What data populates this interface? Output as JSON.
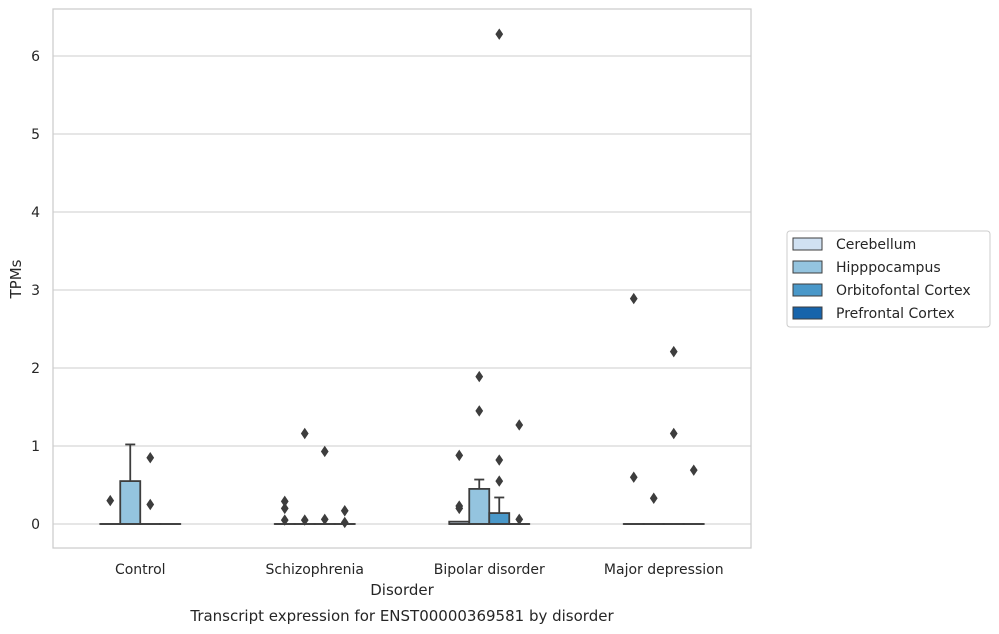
{
  "caption": "Transcript expression for ENST00000369581 by disorder",
  "chart_data": {
    "type": "box",
    "xlabel": "Disorder",
    "ylabel": "TPMs",
    "categories": [
      "Control",
      "Schizophrenia",
      "Bipolar disorder",
      "Major depression"
    ],
    "yticks": [
      0,
      1,
      2,
      3,
      4,
      5,
      6
    ],
    "ylim": [
      -0.3,
      6.6
    ],
    "grid": true,
    "legend_position": "right",
    "hue_colors": [
      "#d0e1f2",
      "#94c4df",
      "#4a98c9",
      "#1764ab"
    ],
    "series": [
      {
        "name": "Cerebellum",
        "boxes": [
          {
            "q1": 0,
            "median": 0,
            "q3": 0,
            "whisker_low": 0,
            "whisker_high": 0,
            "outliers": [
              0.3
            ]
          },
          {
            "q1": 0,
            "median": 0,
            "q3": 0,
            "whisker_low": 0,
            "whisker_high": 0,
            "outliers": [
              0.2,
              0.29,
              0.05
            ]
          },
          {
            "q1": 0,
            "median": 0,
            "q3": 0.03,
            "whisker_low": 0,
            "whisker_high": 0.03,
            "outliers": [
              0.88,
              0.23,
              0.2
            ]
          },
          {
            "q1": 0,
            "median": 0,
            "q3": 0,
            "whisker_low": 0,
            "whisker_high": 0,
            "outliers": [
              2.89,
              0.6
            ]
          }
        ]
      },
      {
        "name": "Hipppocampus",
        "boxes": [
          {
            "q1": 0,
            "median": 0,
            "q3": 0.55,
            "whisker_low": 0,
            "whisker_high": 1.02,
            "outliers": []
          },
          {
            "q1": 0,
            "median": 0,
            "q3": 0,
            "whisker_low": 0,
            "whisker_high": 0,
            "outliers": [
              1.16,
              0.05
            ]
          },
          {
            "q1": 0,
            "median": 0,
            "q3": 0.45,
            "whisker_low": 0,
            "whisker_high": 0.57,
            "outliers": [
              1.89,
              1.45
            ]
          },
          {
            "q1": 0,
            "median": 0,
            "q3": 0,
            "whisker_low": 0,
            "whisker_high": 0,
            "outliers": [
              0.33
            ]
          }
        ]
      },
      {
        "name": "Orbitofontal Cortex",
        "boxes": [
          {
            "q1": 0,
            "median": 0,
            "q3": 0,
            "whisker_low": 0,
            "whisker_high": 0,
            "outliers": [
              0.85,
              0.25
            ]
          },
          {
            "q1": 0,
            "median": 0,
            "q3": 0,
            "whisker_low": 0,
            "whisker_high": 0,
            "outliers": [
              0.93,
              0.06
            ]
          },
          {
            "q1": 0,
            "median": 0,
            "q3": 0.14,
            "whisker_low": 0,
            "whisker_high": 0.34,
            "outliers": [
              6.28,
              0.82,
              0.55
            ]
          },
          {
            "q1": 0,
            "median": 0,
            "q3": 0,
            "whisker_low": 0,
            "whisker_high": 0,
            "outliers": [
              2.21,
              1.16
            ]
          }
        ]
      },
      {
        "name": "Prefrontal Cortex",
        "boxes": [
          {
            "q1": 0,
            "median": 0,
            "q3": 0,
            "whisker_low": 0,
            "whisker_high": 0,
            "outliers": []
          },
          {
            "q1": 0,
            "median": 0,
            "q3": 0,
            "whisker_low": 0,
            "whisker_high": 0,
            "outliers": [
              0.17,
              0.02
            ]
          },
          {
            "q1": 0,
            "median": 0,
            "q3": 0,
            "whisker_low": 0,
            "whisker_high": 0,
            "outliers": [
              1.27,
              0.06
            ]
          },
          {
            "q1": 0,
            "median": 0,
            "q3": 0,
            "whisker_low": 0,
            "whisker_high": 0,
            "outliers": [
              0.69
            ]
          }
        ]
      }
    ]
  }
}
